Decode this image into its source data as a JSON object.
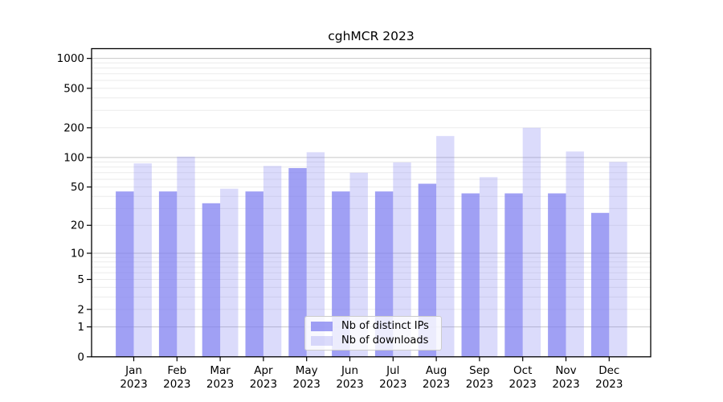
{
  "figure": {
    "title": "cghMCR 2023"
  },
  "chart_data": {
    "type": "bar",
    "title": "cghMCR 2023",
    "categories": [
      "Jan 2023",
      "Feb 2023",
      "Mar 2023",
      "Apr 2023",
      "May 2023",
      "Jun 2023",
      "Jul 2023",
      "Aug 2023",
      "Sep 2023",
      "Oct 2023",
      "Nov 2023",
      "Dec 2023"
    ],
    "series": [
      {
        "name": "Nb of distinct IPs",
        "color": "#7c7cf0",
        "opacity": 0.72,
        "values": [
          45,
          45,
          34,
          45,
          78,
          45,
          45,
          54,
          43,
          43,
          43,
          27
        ]
      },
      {
        "name": "Nb of downloads",
        "color": "#7c7cf0",
        "opacity": 0.28,
        "values": [
          87,
          102,
          48,
          82,
          113,
          70,
          89,
          165,
          63,
          200,
          115,
          90
        ]
      }
    ],
    "y_axis": {
      "scale": "log10(value+1)",
      "ticks": [
        1000,
        500,
        200,
        100,
        50,
        20,
        10,
        5,
        2,
        1,
        0
      ],
      "ylim": [
        0,
        1200
      ]
    },
    "grid": {
      "major_values": [
        1,
        10,
        100,
        1000
      ],
      "minor_values": [
        2,
        3,
        4,
        5,
        6,
        7,
        8,
        9,
        20,
        30,
        40,
        50,
        60,
        70,
        80,
        90,
        200,
        300,
        400,
        500,
        600,
        700,
        800,
        900
      ],
      "major_color": "#c8c8c8",
      "minor_color": "#ebebeb"
    },
    "legend": {
      "position": "lower center"
    },
    "axis_color": "#000000",
    "text_color": "#000000"
  }
}
